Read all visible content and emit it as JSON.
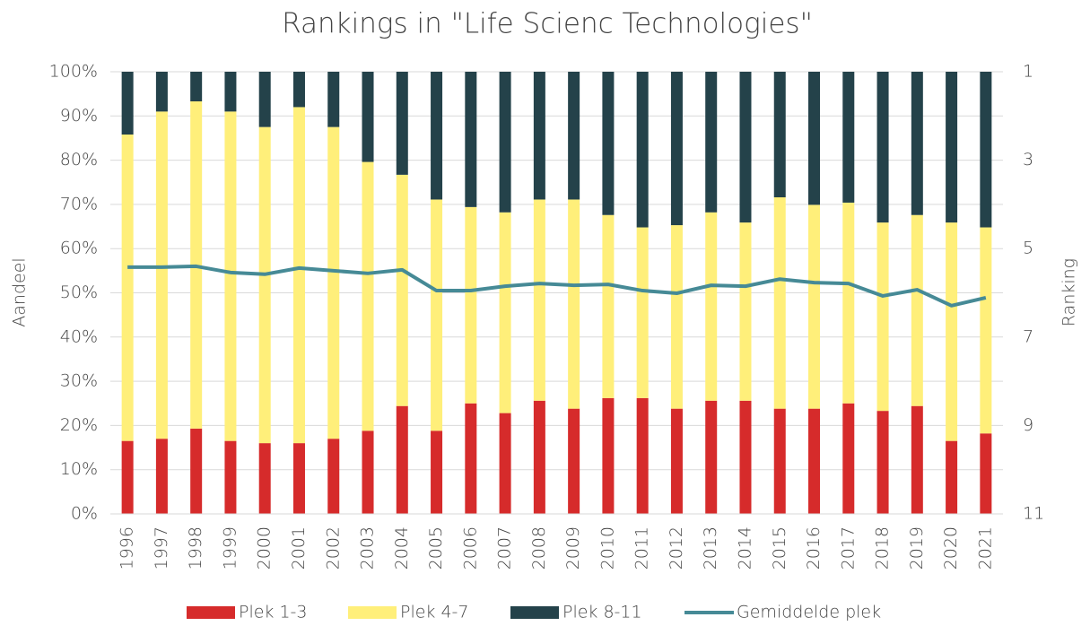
{
  "chart_data": {
    "type": "stacked-bar-line",
    "title": "Rankings in \"Life Scienc Technologies\"",
    "y_label": "Aandeel",
    "y2_label": "Ranking",
    "categories": [
      "1996",
      "1997",
      "1998",
      "1999",
      "2000",
      "2001",
      "2002",
      "2003",
      "2004",
      "2005",
      "2006",
      "2007",
      "2008",
      "2009",
      "2010",
      "2011",
      "2012",
      "2013",
      "2014",
      "2015",
      "2016",
      "2017",
      "2018",
      "2019",
      "2020",
      "2021"
    ],
    "series": [
      {
        "name": "Plek 1-3",
        "type": "bar",
        "color": "#d62b2b",
        "values": [
          16.5,
          17,
          19.3,
          16.5,
          16,
          16,
          17,
          18.8,
          24.4,
          18.8,
          25,
          22.8,
          25.6,
          23.8,
          26.2,
          26.2,
          23.8,
          25.6,
          25.6,
          23.8,
          23.8,
          25,
          23.3,
          24.4,
          16.5,
          18.2
        ]
      },
      {
        "name": "Plek 4-7",
        "type": "bar",
        "color": "#ffef7a",
        "values": [
          69.3,
          74,
          74,
          74.5,
          71.5,
          76,
          70.5,
          60.8,
          52.3,
          52.3,
          44.4,
          45.4,
          45.5,
          47.3,
          41.4,
          38.6,
          41.5,
          42.6,
          40.3,
          47.8,
          46.1,
          45.4,
          42.6,
          43.2,
          49.4,
          46.6
        ]
      },
      {
        "name": "Plek 8-11",
        "type": "bar",
        "color": "#24424a",
        "values": [
          14.2,
          9,
          6.7,
          9,
          12.5,
          8,
          12.5,
          20.4,
          23.3,
          28.9,
          30.6,
          31.8,
          28.9,
          28.9,
          32.4,
          35.2,
          34.7,
          31.8,
          34.1,
          28.4,
          30.1,
          29.6,
          34.1,
          32.4,
          34.1,
          35.2
        ]
      },
      {
        "name": "Gemiddelde plek",
        "type": "line",
        "axis": "y2",
        "color": "#468a96",
        "values": [
          5.42,
          5.42,
          5.4,
          5.54,
          5.58,
          5.44,
          5.5,
          5.56,
          5.48,
          5.95,
          5.95,
          5.85,
          5.79,
          5.83,
          5.81,
          5.95,
          6.01,
          5.83,
          5.85,
          5.69,
          5.77,
          5.79,
          6.07,
          5.93,
          6.29,
          6.11
        ]
      }
    ],
    "ylim": [
      0,
      100
    ],
    "yticks": [
      {
        "value": 0,
        "label": "0%"
      },
      {
        "value": 10,
        "label": "10%"
      },
      {
        "value": 20,
        "label": "20%"
      },
      {
        "value": 30,
        "label": "30%"
      },
      {
        "value": 40,
        "label": "40%"
      },
      {
        "value": 50,
        "label": "50%"
      },
      {
        "value": 60,
        "label": "60%"
      },
      {
        "value": 70,
        "label": "70%"
      },
      {
        "value": 80,
        "label": "80%"
      },
      {
        "value": 90,
        "label": "90%"
      },
      {
        "value": 100,
        "label": "100%"
      }
    ],
    "y2lim": [
      11,
      1
    ],
    "y2ticks": [
      1,
      3,
      5,
      7,
      9,
      11
    ],
    "grid": true,
    "legend": "bottom"
  }
}
